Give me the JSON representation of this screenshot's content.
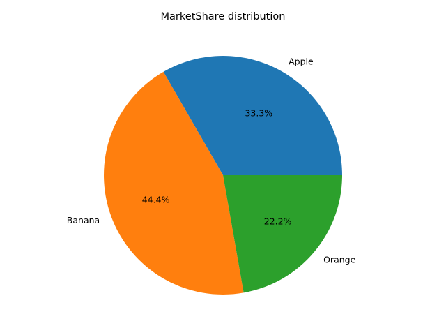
{
  "chart_data": {
    "type": "pie",
    "title": "MarketShare distribution",
    "categories": [
      "Apple",
      "Banana",
      "Orange"
    ],
    "values": [
      33.3,
      44.4,
      22.2
    ],
    "percent_labels": [
      "33.3%",
      "44.4%",
      "22.2%"
    ],
    "colors": [
      "#1f77b4",
      "#ff7f0e",
      "#2ca02c"
    ],
    "start_angle_deg": 0,
    "direction": "counterclockwise",
    "legend": "none"
  }
}
